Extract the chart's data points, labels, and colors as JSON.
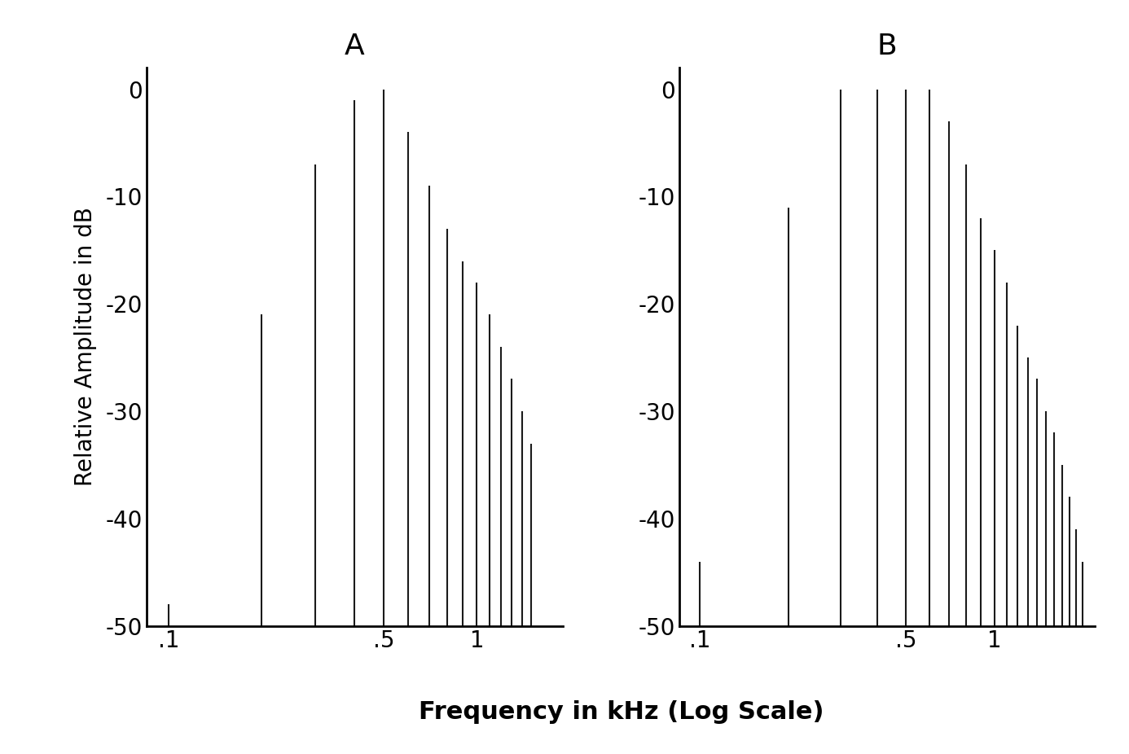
{
  "title_A": "A",
  "title_B": "B",
  "ylabel": "Relative Amplitude in dB",
  "xlabel": "Frequency in kHz (Log Scale)",
  "ylim": [
    -50,
    2
  ],
  "xlim_A": [
    0.085,
    1.9
  ],
  "xlim_B": [
    0.085,
    2.2
  ],
  "yticks": [
    0,
    -10,
    -20,
    -30,
    -40,
    -50
  ],
  "xticks": [
    0.1,
    0.5,
    1.0
  ],
  "xticklabels": [
    ".1",
    ".5",
    "1"
  ],
  "background_color": "#ffffff",
  "line_color": "#1a1a1a",
  "freqs_A": [
    0.1,
    0.2,
    0.3,
    0.4,
    0.5,
    0.6,
    0.7,
    0.8,
    0.9,
    1.0,
    1.1,
    1.2,
    1.3,
    1.4,
    1.5
  ],
  "amps_A": [
    -48,
    -21,
    -7,
    -1,
    0,
    -4,
    -9,
    -13,
    -16,
    -18,
    -21,
    -24,
    -27,
    -30,
    -33
  ],
  "freqs_B": [
    0.1,
    0.2,
    0.3,
    0.4,
    0.5,
    0.6,
    0.7,
    0.8,
    0.9,
    1.0,
    1.1,
    1.2,
    1.3,
    1.4,
    1.5,
    1.6,
    1.7,
    1.8,
    1.9,
    2.0
  ],
  "amps_B": [
    -44,
    -11,
    0,
    0,
    0,
    0,
    -3,
    -7,
    -12,
    -15,
    -18,
    -22,
    -25,
    -27,
    -30,
    -32,
    -35,
    -38,
    -41,
    -44
  ]
}
